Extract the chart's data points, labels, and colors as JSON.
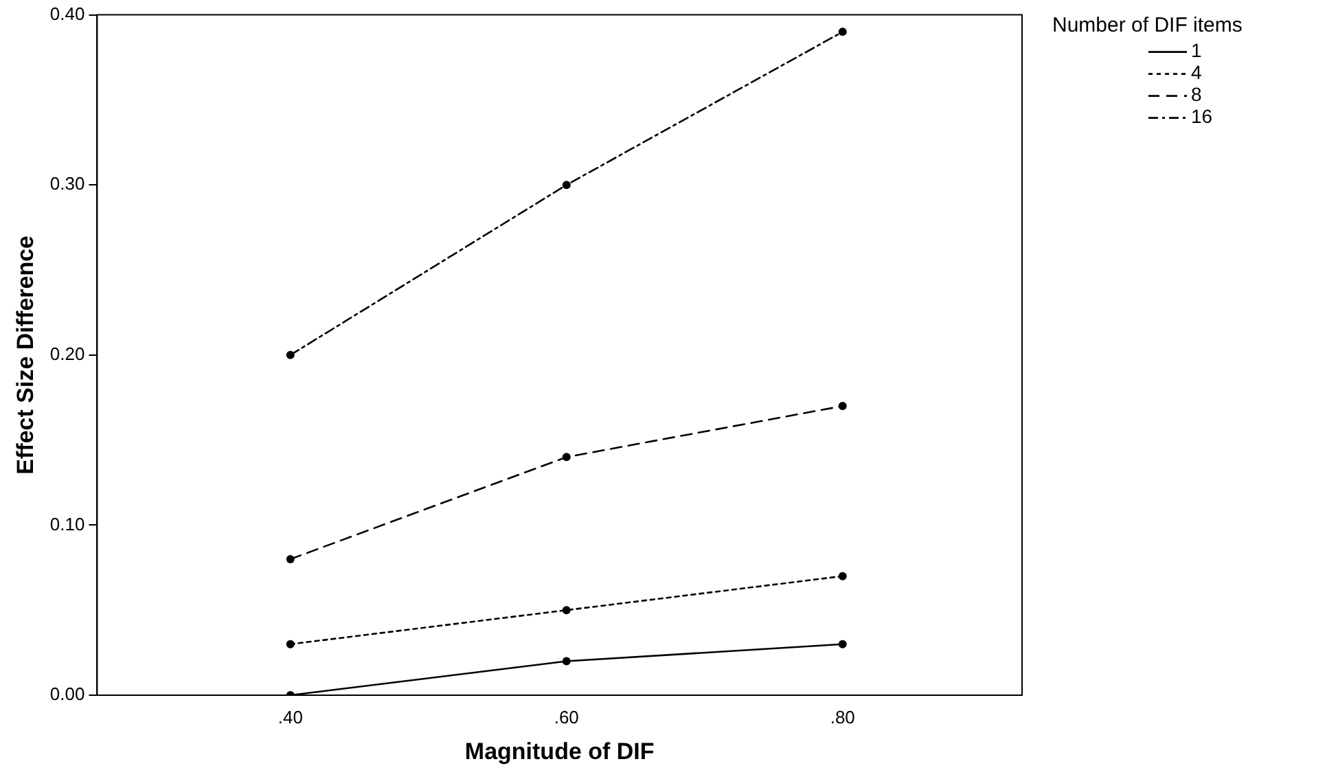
{
  "chart_data": {
    "type": "line",
    "xlabel": "Magnitude of DIF",
    "ylabel": "Effect Size Difference",
    "legend_title": "Number of DIF items",
    "legend": "top right",
    "marker": "circle",
    "grid": false,
    "x": [
      0.4,
      0.6,
      0.8
    ],
    "xlim": [
      0.26,
      0.93
    ],
    "xticks": [
      {
        "value": 0.4,
        "label": ".40"
      },
      {
        "value": 0.6,
        "label": ".60"
      },
      {
        "value": 0.8,
        "label": ".80"
      }
    ],
    "ylim": [
      0,
      0.4
    ],
    "yticks": [
      {
        "value": 0,
        "label": "0.00"
      },
      {
        "value": 0.1,
        "label": "0.10"
      },
      {
        "value": 0.2,
        "label": "0.20"
      },
      {
        "value": 0.3,
        "label": "0.30"
      },
      {
        "value": 0.4,
        "label": "0.40"
      }
    ],
    "series": [
      {
        "name": "1",
        "color": "#000000",
        "line_style": "solid",
        "values": [
          0.0,
          0.02,
          0.03
        ]
      },
      {
        "name": "4",
        "color": "#000000",
        "line_style": "dotted",
        "values": [
          0.03,
          0.05,
          0.07
        ]
      },
      {
        "name": "8",
        "color": "#000000",
        "line_style": "dashed",
        "values": [
          0.08,
          0.14,
          0.17
        ]
      },
      {
        "name": "16",
        "color": "#000000",
        "line_style": "dashdot",
        "values": [
          0.2,
          0.3,
          0.39
        ]
      }
    ]
  }
}
